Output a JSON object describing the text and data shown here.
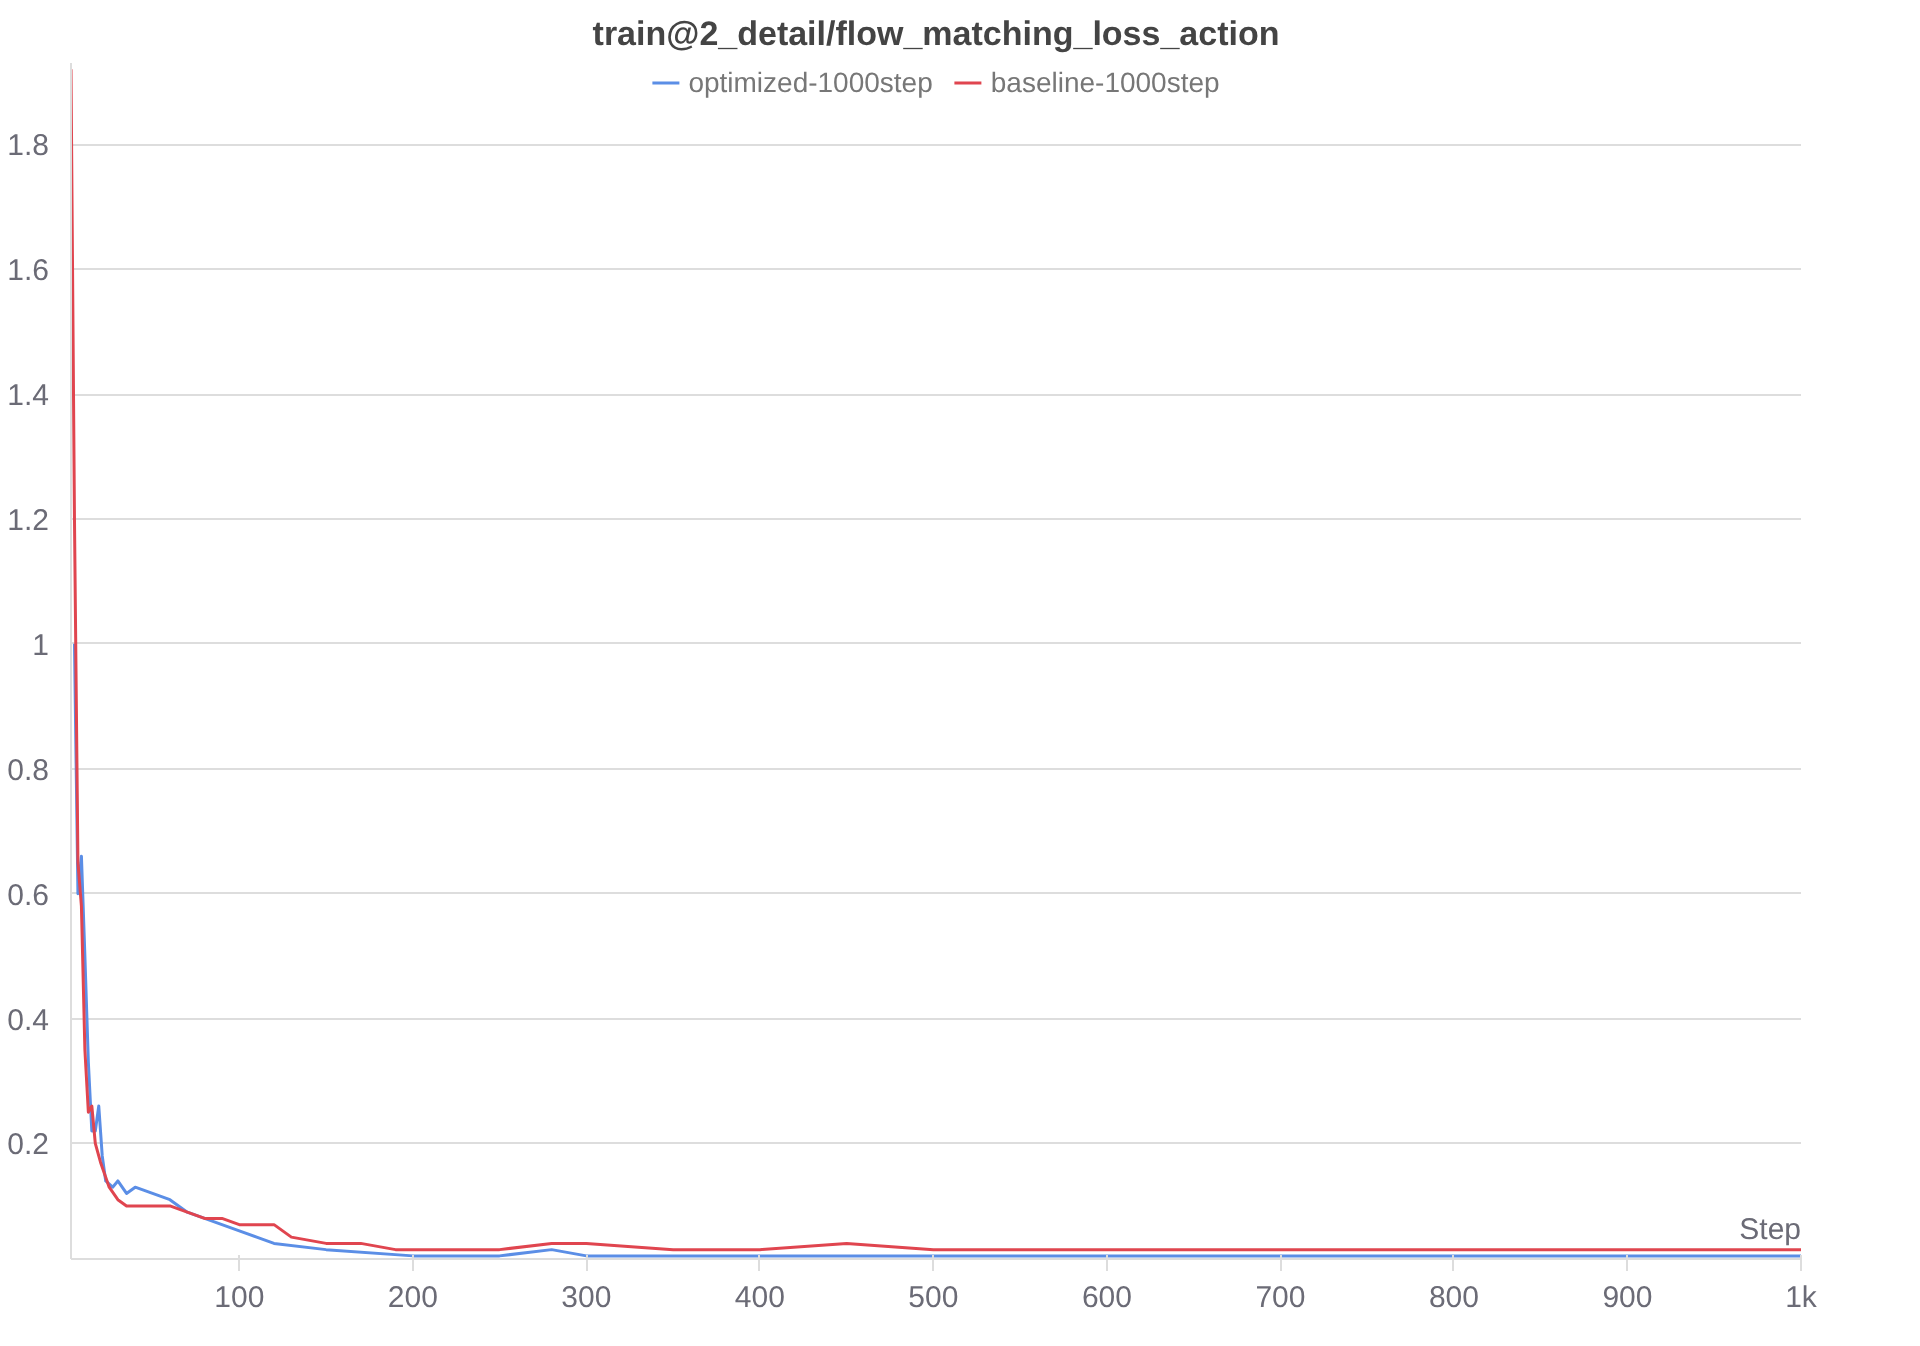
{
  "chart_data": {
    "type": "line",
    "title": "train@2_detail/flow_matching_loss_action",
    "xlabel": "Step",
    "xlim": [
      3,
      1000
    ],
    "ylim": [
      0.015,
      1.93
    ],
    "xticks": [
      100,
      200,
      300,
      400,
      500,
      600,
      700,
      800,
      900,
      {
        "value": 1000,
        "label": "1k"
      }
    ],
    "yticks": [
      0.2,
      0.4,
      0.6,
      0.8,
      1,
      1.2,
      1.4,
      1.6,
      1.8
    ],
    "grid": "y",
    "legend": "top",
    "marker": "none",
    "line_style": "solid",
    "series": [
      {
        "name": "optimized-1000step",
        "color": "#5b8ee6",
        "x": [
          5,
          7,
          9,
          11,
          13,
          15,
          17,
          19,
          21,
          23,
          27,
          30,
          35,
          40,
          50,
          60,
          70,
          80,
          100,
          110,
          120,
          150,
          200,
          250,
          280,
          300,
          350,
          400,
          450,
          480,
          500,
          550,
          600,
          650,
          700,
          750,
          800,
          850,
          900,
          950,
          1000
        ],
        "values": [
          1.0,
          0.6,
          0.66,
          0.5,
          0.33,
          0.22,
          0.22,
          0.26,
          0.18,
          0.14,
          0.13,
          0.14,
          0.12,
          0.13,
          0.12,
          0.11,
          0.09,
          0.08,
          0.06,
          0.05,
          0.04,
          0.03,
          0.02,
          0.02,
          0.03,
          0.02,
          0.02,
          0.02,
          0.02,
          0.02,
          0.02,
          0.02,
          0.02,
          0.02,
          0.02,
          0.02,
          0.02,
          0.02,
          0.02,
          0.02,
          0.02
        ]
      },
      {
        "name": "baseline-1000step",
        "color": "#e0454f",
        "x": [
          3,
          5,
          7,
          9,
          11,
          13,
          15,
          17,
          20,
          25,
          30,
          35,
          40,
          50,
          60,
          70,
          80,
          90,
          100,
          110,
          120,
          130,
          150,
          170,
          190,
          220,
          250,
          280,
          300,
          350,
          400,
          450,
          500,
          550,
          600,
          650,
          700,
          750,
          800,
          850,
          900,
          950,
          1000
        ],
        "values": [
          1.92,
          1.2,
          0.65,
          0.58,
          0.35,
          0.25,
          0.26,
          0.2,
          0.17,
          0.13,
          0.11,
          0.1,
          0.1,
          0.1,
          0.1,
          0.09,
          0.08,
          0.08,
          0.07,
          0.07,
          0.07,
          0.05,
          0.04,
          0.04,
          0.03,
          0.03,
          0.03,
          0.04,
          0.04,
          0.03,
          0.03,
          0.04,
          0.03,
          0.03,
          0.03,
          0.03,
          0.03,
          0.03,
          0.03,
          0.03,
          0.03,
          0.03,
          0.03
        ]
      }
    ]
  }
}
